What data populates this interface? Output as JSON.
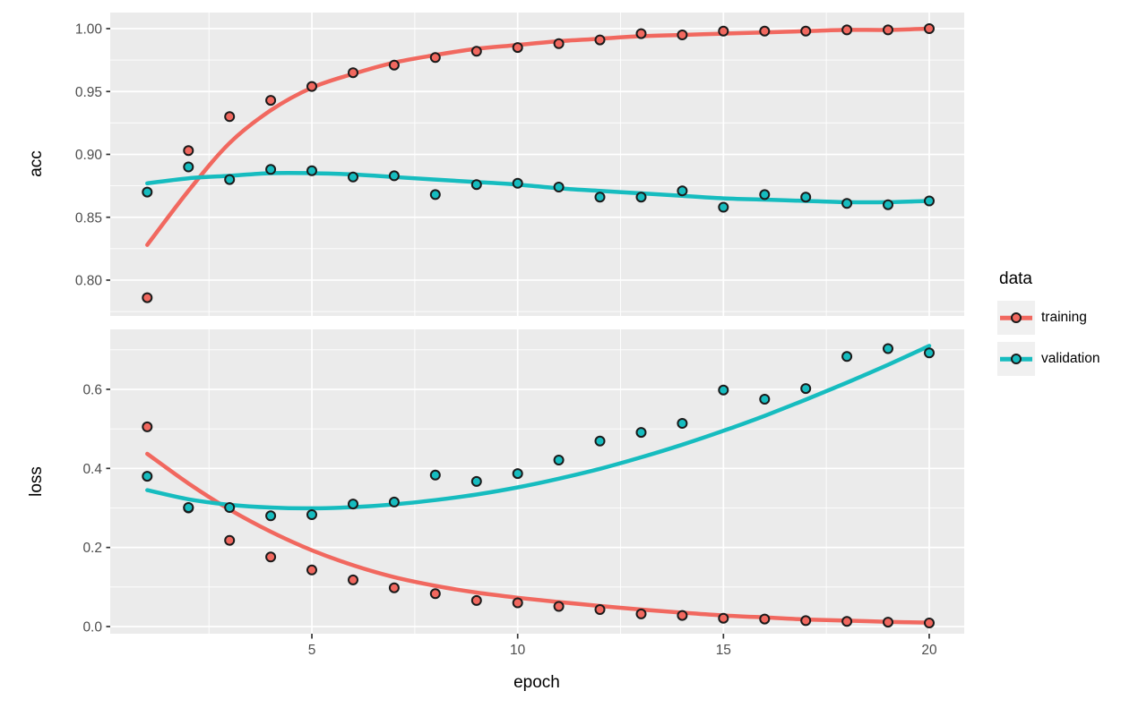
{
  "figure": {
    "background": "#FFFFFF"
  },
  "titles": {
    "y_acc": "acc",
    "y_loss": "loss",
    "x": "epoch"
  },
  "legend": {
    "title": "data",
    "items": [
      {
        "label": "training",
        "color": "#F1685F"
      },
      {
        "label": "validation",
        "color": "#16BCBF"
      }
    ]
  },
  "colors": {
    "training": "#F1685F",
    "validation": "#16BCBF",
    "panel_bg": "#EBEBEB",
    "grid": "#FFFFFF",
    "tick_text": "#4D4D4D",
    "tick_mark": "#333333",
    "point_outline": "#1A1A1A"
  },
  "chart_data": [
    {
      "type": "scatter",
      "facet": "acc",
      "title": "",
      "xlabel": "epoch",
      "ylabel": "acc",
      "legend_position": "right",
      "grid": true,
      "x": [
        1,
        2,
        3,
        4,
        5,
        6,
        7,
        8,
        9,
        10,
        11,
        12,
        13,
        14,
        15,
        16,
        17,
        18,
        19,
        20
      ],
      "xlim": [
        0.1,
        20.85
      ],
      "ylim": [
        0.7715,
        1.0128
      ],
      "xticks": {
        "values": [
          5,
          10,
          15,
          20
        ],
        "labels": [
          "5",
          "10",
          "15",
          "20"
        ]
      },
      "xminor": [
        2.5,
        7.5,
        12.5,
        17.5
      ],
      "yticks": {
        "values": [
          0.8,
          0.85,
          0.9,
          0.95,
          1.0
        ],
        "labels": [
          "0.80",
          "0.85",
          "0.90",
          "0.95",
          "1.00"
        ]
      },
      "yminor": [
        0.775,
        0.825,
        0.875,
        0.925,
        0.975
      ],
      "series": [
        {
          "name": "training",
          "geom": "smooth",
          "color_key": "training",
          "values": [
            0.828,
            0.871,
            0.909,
            0.935,
            0.953,
            0.964,
            0.973,
            0.979,
            0.984,
            0.987,
            0.99,
            0.992,
            0.994,
            0.995,
            0.996,
            0.997,
            0.998,
            0.999,
            0.999,
            1.0
          ]
        },
        {
          "name": "validation",
          "geom": "smooth",
          "color_key": "validation",
          "values": [
            0.877,
            0.881,
            0.883,
            0.885,
            0.885,
            0.884,
            0.882,
            0.88,
            0.878,
            0.876,
            0.873,
            0.871,
            0.869,
            0.867,
            0.865,
            0.864,
            0.863,
            0.862,
            0.862,
            0.863
          ]
        },
        {
          "name": "training",
          "geom": "points",
          "color_key": "training",
          "values": [
            0.786,
            0.903,
            0.93,
            0.943,
            0.954,
            0.965,
            0.971,
            0.977,
            0.982,
            0.985,
            0.988,
            0.991,
            0.996,
            0.995,
            0.998,
            0.998,
            0.998,
            0.999,
            0.999,
            1.0
          ]
        },
        {
          "name": "validation",
          "geom": "points",
          "color_key": "validation",
          "values": [
            0.87,
            0.89,
            0.88,
            0.888,
            0.887,
            0.882,
            0.883,
            0.868,
            0.876,
            0.877,
            0.874,
            0.866,
            0.866,
            0.871,
            0.858,
            0.868,
            0.866,
            0.861,
            0.86,
            0.863
          ]
        }
      ]
    },
    {
      "type": "scatter",
      "facet": "loss",
      "title": "",
      "xlabel": "epoch",
      "ylabel": "loss",
      "legend_position": "right",
      "grid": true,
      "x": [
        1,
        2,
        3,
        4,
        5,
        6,
        7,
        8,
        9,
        10,
        11,
        12,
        13,
        14,
        15,
        16,
        17,
        18,
        19,
        20
      ],
      "xlim": [
        0.1,
        20.85
      ],
      "ylim": [
        -0.0181,
        0.7516
      ],
      "xticks": {
        "values": [
          5,
          10,
          15,
          20
        ],
        "labels": [
          "5",
          "10",
          "15",
          "20"
        ]
      },
      "xminor": [
        2.5,
        7.5,
        12.5,
        17.5
      ],
      "yticks": {
        "values": [
          0.0,
          0.2,
          0.4,
          0.6
        ],
        "labels": [
          "0.0",
          "0.2",
          "0.4",
          "0.6"
        ]
      },
      "yminor": [
        0.1,
        0.3,
        0.5,
        0.7
      ],
      "series": [
        {
          "name": "training",
          "geom": "smooth",
          "color_key": "training",
          "values": [
            0.437,
            0.362,
            0.296,
            0.24,
            0.193,
            0.155,
            0.125,
            0.103,
            0.086,
            0.073,
            0.062,
            0.052,
            0.043,
            0.035,
            0.028,
            0.023,
            0.018,
            0.015,
            0.012,
            0.01
          ]
        },
        {
          "name": "validation",
          "geom": "smooth",
          "color_key": "validation",
          "values": [
            0.345,
            0.322,
            0.308,
            0.301,
            0.299,
            0.302,
            0.309,
            0.32,
            0.334,
            0.352,
            0.374,
            0.399,
            0.428,
            0.46,
            0.495,
            0.533,
            0.574,
            0.617,
            0.662,
            0.71
          ]
        },
        {
          "name": "training",
          "geom": "points",
          "color_key": "training",
          "values": [
            0.505,
            0.3,
            0.218,
            0.176,
            0.143,
            0.118,
            0.098,
            0.083,
            0.066,
            0.06,
            0.051,
            0.043,
            0.032,
            0.028,
            0.021,
            0.019,
            0.015,
            0.013,
            0.011,
            0.009
          ]
        },
        {
          "name": "validation",
          "geom": "points",
          "color_key": "validation",
          "values": [
            0.38,
            0.301,
            0.301,
            0.28,
            0.283,
            0.31,
            0.315,
            0.383,
            0.367,
            0.387,
            0.421,
            0.469,
            0.491,
            0.514,
            0.598,
            0.575,
            0.602,
            0.683,
            0.703,
            0.692
          ]
        }
      ]
    }
  ]
}
